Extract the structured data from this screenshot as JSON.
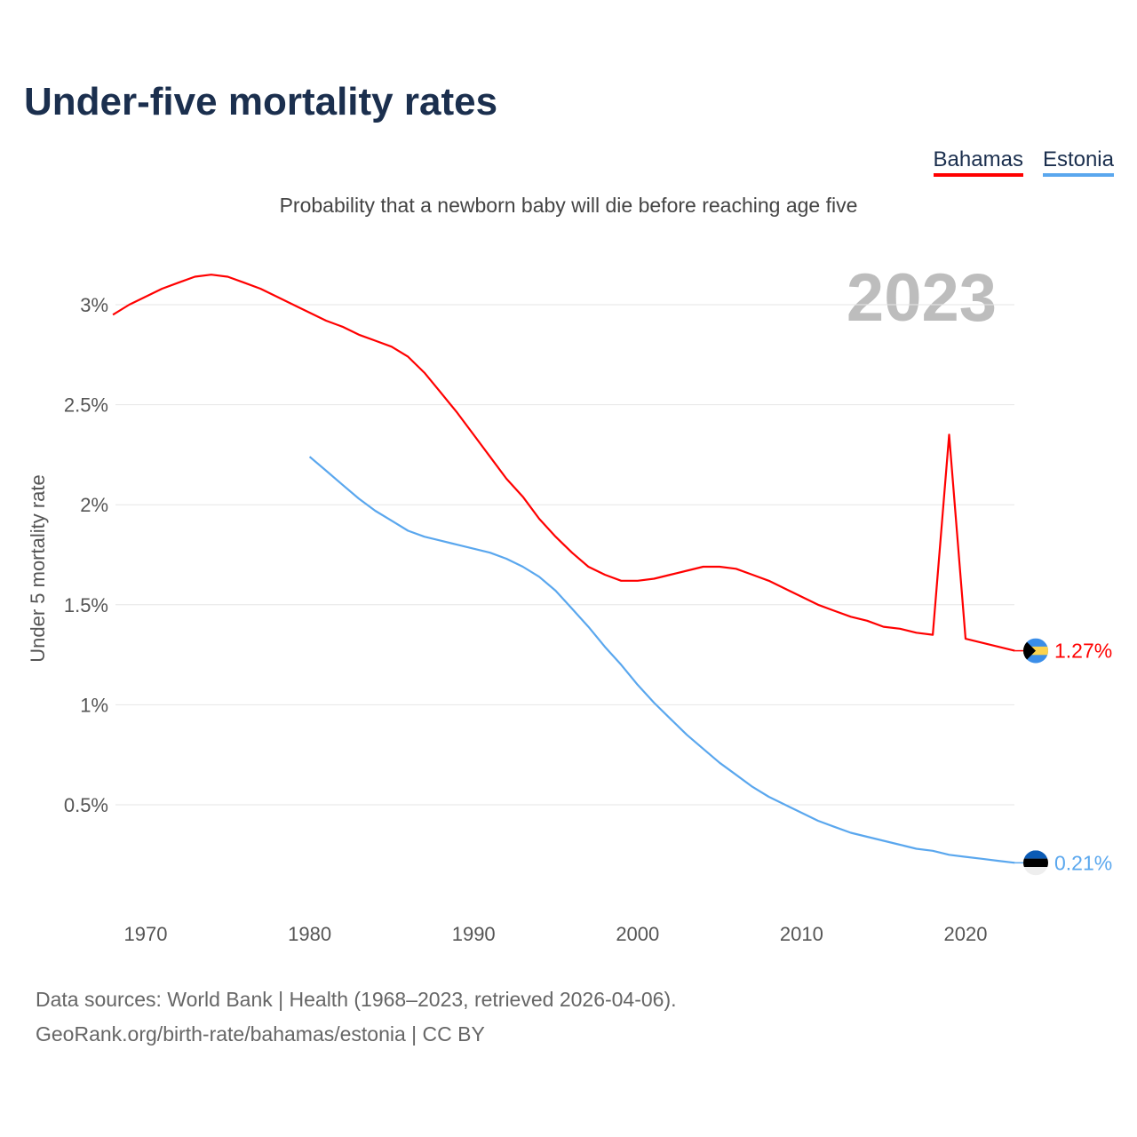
{
  "title": "Under-five mortality rates",
  "subtitle": "Probability that a newborn baby will die before reaching age five",
  "year_watermark": "2023",
  "footer": {
    "line1": "Data sources: World Bank | Health (1968–2023, retrieved 2026-04-06).",
    "line2": "GeoRank.org/birth-rate/bahamas/estonia | CC BY"
  },
  "chart_data": {
    "type": "line",
    "title": "Under-five mortality rates",
    "ylabel": "Under 5 mortality rate",
    "xlabel": "",
    "xlim": [
      1968,
      2023
    ],
    "ylim": [
      0,
      3.3
    ],
    "x_ticks": [
      1970,
      1980,
      1990,
      2000,
      2010,
      2020
    ],
    "y_ticks": [
      0.5,
      1,
      1.5,
      2,
      2.5,
      3
    ],
    "y_tick_labels": [
      "0.5%",
      "1%",
      "1.5%",
      "2%",
      "2.5%",
      "3%"
    ],
    "grid": true,
    "legend_position": "top-right",
    "series": [
      {
        "name": "Bahamas",
        "color": "#ff0000",
        "end_label": "1.27%",
        "flag": "bahamas-flag",
        "x": [
          1968,
          1969,
          1970,
          1971,
          1972,
          1973,
          1974,
          1975,
          1976,
          1977,
          1978,
          1979,
          1980,
          1981,
          1982,
          1983,
          1984,
          1985,
          1986,
          1987,
          1988,
          1989,
          1990,
          1991,
          1992,
          1993,
          1994,
          1995,
          1996,
          1997,
          1998,
          1999,
          2000,
          2001,
          2002,
          2003,
          2004,
          2005,
          2006,
          2007,
          2008,
          2009,
          2010,
          2011,
          2012,
          2013,
          2014,
          2015,
          2016,
          2017,
          2018,
          2019,
          2020,
          2021,
          2022,
          2023
        ],
        "values": [
          2.95,
          3.0,
          3.04,
          3.08,
          3.11,
          3.14,
          3.15,
          3.14,
          3.11,
          3.08,
          3.04,
          3.0,
          2.96,
          2.92,
          2.89,
          2.85,
          2.82,
          2.79,
          2.74,
          2.66,
          2.56,
          2.46,
          2.35,
          2.24,
          2.13,
          2.04,
          1.93,
          1.84,
          1.76,
          1.69,
          1.65,
          1.62,
          1.62,
          1.63,
          1.65,
          1.67,
          1.69,
          1.69,
          1.68,
          1.65,
          1.62,
          1.58,
          1.54,
          1.5,
          1.47,
          1.44,
          1.42,
          1.39,
          1.38,
          1.36,
          1.35,
          2.35,
          1.33,
          1.31,
          1.29,
          1.27
        ]
      },
      {
        "name": "Estonia",
        "color": "#5aa7ee",
        "end_label": "0.21%",
        "flag": "estonia-flag",
        "x": [
          1980,
          1981,
          1982,
          1983,
          1984,
          1985,
          1986,
          1987,
          1988,
          1989,
          1990,
          1991,
          1992,
          1993,
          1994,
          1995,
          1996,
          1997,
          1998,
          1999,
          2000,
          2001,
          2002,
          2003,
          2004,
          2005,
          2006,
          2007,
          2008,
          2009,
          2010,
          2011,
          2012,
          2013,
          2014,
          2015,
          2016,
          2017,
          2018,
          2019,
          2020,
          2021,
          2022,
          2023
        ],
        "values": [
          2.24,
          2.17,
          2.1,
          2.03,
          1.97,
          1.92,
          1.87,
          1.84,
          1.82,
          1.8,
          1.78,
          1.76,
          1.73,
          1.69,
          1.64,
          1.57,
          1.48,
          1.39,
          1.29,
          1.2,
          1.1,
          1.01,
          0.93,
          0.85,
          0.78,
          0.71,
          0.65,
          0.59,
          0.54,
          0.5,
          0.46,
          0.42,
          0.39,
          0.36,
          0.34,
          0.32,
          0.3,
          0.28,
          0.27,
          0.25,
          0.24,
          0.23,
          0.22,
          0.21
        ]
      }
    ]
  }
}
